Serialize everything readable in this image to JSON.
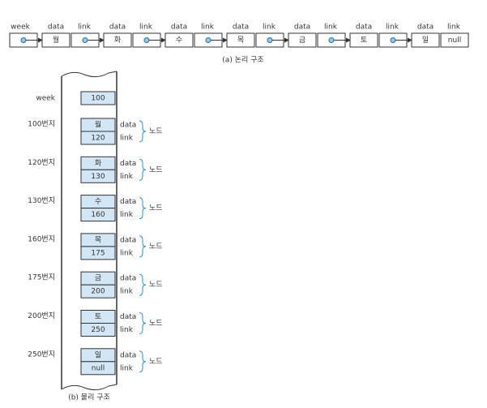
{
  "logical": {
    "head_label": "week",
    "nodes": [
      {
        "data_label": "data",
        "link_label": "link",
        "data": "월"
      },
      {
        "data_label": "data",
        "link_label": "link",
        "data": "화"
      },
      {
        "data_label": "data",
        "link_label": "link",
        "data": "수"
      },
      {
        "data_label": "data",
        "link_label": "link",
        "data": "목"
      },
      {
        "data_label": "data",
        "link_label": "link",
        "data": "금"
      },
      {
        "data_label": "data",
        "link_label": "link",
        "data": "토"
      },
      {
        "data_label": "data",
        "link_label": "link",
        "data": "일"
      }
    ],
    "last_link": "null",
    "caption": "(a) 논리 구조"
  },
  "physical": {
    "head": {
      "label": "week",
      "value": "100"
    },
    "nodes": [
      {
        "address": "100번지",
        "data": "월",
        "link": "120",
        "data_label": "data",
        "link_label": "link",
        "group_label": "노드"
      },
      {
        "address": "120번지",
        "data": "화",
        "link": "130",
        "data_label": "data",
        "link_label": "link",
        "group_label": "노드"
      },
      {
        "address": "130번지",
        "data": "수",
        "link": "160",
        "data_label": "data",
        "link_label": "link",
        "group_label": "노드"
      },
      {
        "address": "160번지",
        "data": "목",
        "link": "175",
        "data_label": "data",
        "link_label": "link",
        "group_label": "노드"
      },
      {
        "address": "175번지",
        "data": "금",
        "link": "200",
        "data_label": "data",
        "link_label": "link",
        "group_label": "노드"
      },
      {
        "address": "200번지",
        "data": "토",
        "link": "250",
        "data_label": "data",
        "link_label": "link",
        "group_label": "노드"
      },
      {
        "address": "250번지",
        "data": "일",
        "link": "null",
        "data_label": "data",
        "link_label": "link",
        "group_label": "노드"
      }
    ],
    "caption": "(b) 물리 구조"
  }
}
